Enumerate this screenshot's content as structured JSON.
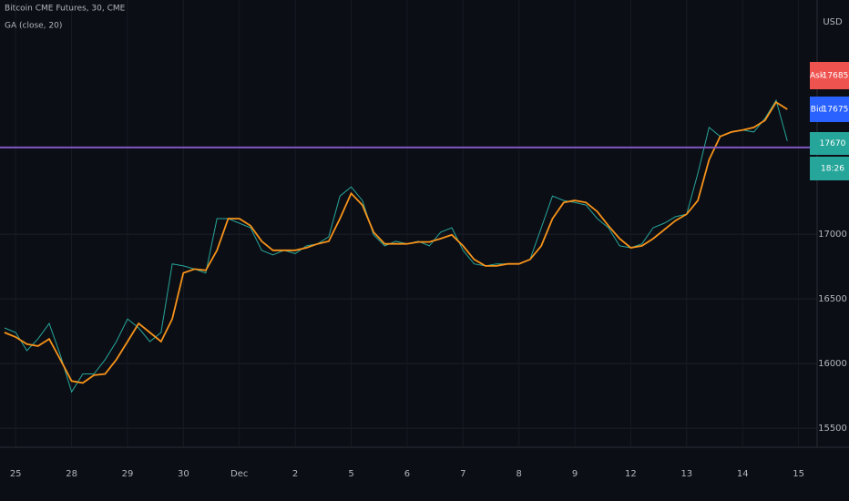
{
  "chart_data": {
    "type": "line",
    "title": "Bitcoin CME Futures, 30, CME",
    "currency": "USD",
    "x": [
      -0.2,
      0,
      0.2,
      0.4,
      0.6,
      0.8,
      1,
      1.2,
      1.4,
      1.6,
      1.8,
      2,
      2.2,
      2.4,
      2.6,
      2.8,
      3,
      3.2,
      3.4,
      3.6,
      3.8,
      4,
      4.2,
      4.4,
      4.6,
      4.8,
      5,
      5.2,
      5.4,
      5.6,
      5.8,
      6,
      6.2,
      6.4,
      6.6,
      6.8,
      7,
      7.2,
      7.4,
      7.6,
      7.8,
      8,
      8.2,
      8.4,
      8.6,
      8.8,
      9,
      9.2,
      9.4,
      9.6,
      9.8,
      10,
      10.2,
      10.4,
      10.6,
      10.8,
      11,
      11.2,
      11.4,
      11.6,
      11.8,
      12,
      12.2,
      12.4,
      12.6,
      12.8,
      13,
      13.2,
      13.4,
      13.6,
      13.8
    ],
    "series": [
      {
        "color": "#26a69a",
        "values": [
          16275,
          16240,
          16100,
          16190,
          16310,
          16065,
          15780,
          15920,
          15920,
          16030,
          16170,
          16345,
          16275,
          16170,
          16240,
          16770,
          16755,
          16730,
          16700,
          17120,
          17120,
          17085,
          17050,
          16875,
          16840,
          16875,
          16850,
          16910,
          16925,
          16980,
          17295,
          17365,
          17260,
          16995,
          16910,
          16945,
          16925,
          16945,
          16910,
          17015,
          17050,
          16875,
          16770,
          16755,
          16770,
          16770,
          16770,
          16805,
          17050,
          17295,
          17260,
          17245,
          17225,
          17120,
          17050,
          16910,
          16895,
          16925,
          17050,
          17085,
          17135,
          17155,
          17470,
          17825,
          17755,
          17790,
          17805,
          17790,
          17895,
          18035,
          17720
        ]
      },
      {
        "name": "GA (close, 20)",
        "color": "#f7931a",
        "values": [
          16240,
          16205,
          16150,
          16135,
          16190,
          16030,
          15865,
          15850,
          15910,
          15920,
          16030,
          16170,
          16310,
          16240,
          16170,
          16345,
          16700,
          16730,
          16720,
          16875,
          17120,
          17120,
          17065,
          16945,
          16875,
          16875,
          16875,
          16895,
          16925,
          16945,
          17120,
          17315,
          17225,
          17015,
          16925,
          16925,
          16925,
          16940,
          16940,
          16965,
          16995,
          16910,
          16805,
          16755,
          16755,
          16770,
          16770,
          16805,
          16910,
          17120,
          17245,
          17260,
          17245,
          17175,
          17065,
          16965,
          16895,
          16910,
          16965,
          17035,
          17105,
          17155,
          17260,
          17575,
          17755,
          17790,
          17805,
          17825,
          17880,
          18020,
          17965
        ]
      }
    ],
    "xlim": [
      -0.28,
      14.3
    ],
    "xticks": [
      {
        "value": 0,
        "label": "25"
      },
      {
        "value": 1,
        "label": "28"
      },
      {
        "value": 2,
        "label": "29"
      },
      {
        "value": 3,
        "label": "30"
      },
      {
        "value": 4,
        "label": "Dec"
      },
      {
        "value": 5,
        "label": "2"
      },
      {
        "value": 6,
        "label": "5"
      },
      {
        "value": 7,
        "label": "6"
      },
      {
        "value": 8,
        "label": "7"
      },
      {
        "value": 9,
        "label": "8"
      },
      {
        "value": 10,
        "label": "9"
      },
      {
        "value": 11,
        "label": "12"
      },
      {
        "value": 12,
        "label": "13"
      },
      {
        "value": 13,
        "label": "14"
      },
      {
        "value": 14,
        "label": "15"
      }
    ],
    "ylim": [
      15360,
      18810
    ],
    "yticks": [
      15500,
      16000,
      16500,
      17000
    ],
    "grid": true,
    "ask": {
      "label": "Ask",
      "value": 17685
    },
    "bid": {
      "label": "Bid",
      "value": 17675
    },
    "last_price": 17670,
    "countdown": "18:26"
  }
}
